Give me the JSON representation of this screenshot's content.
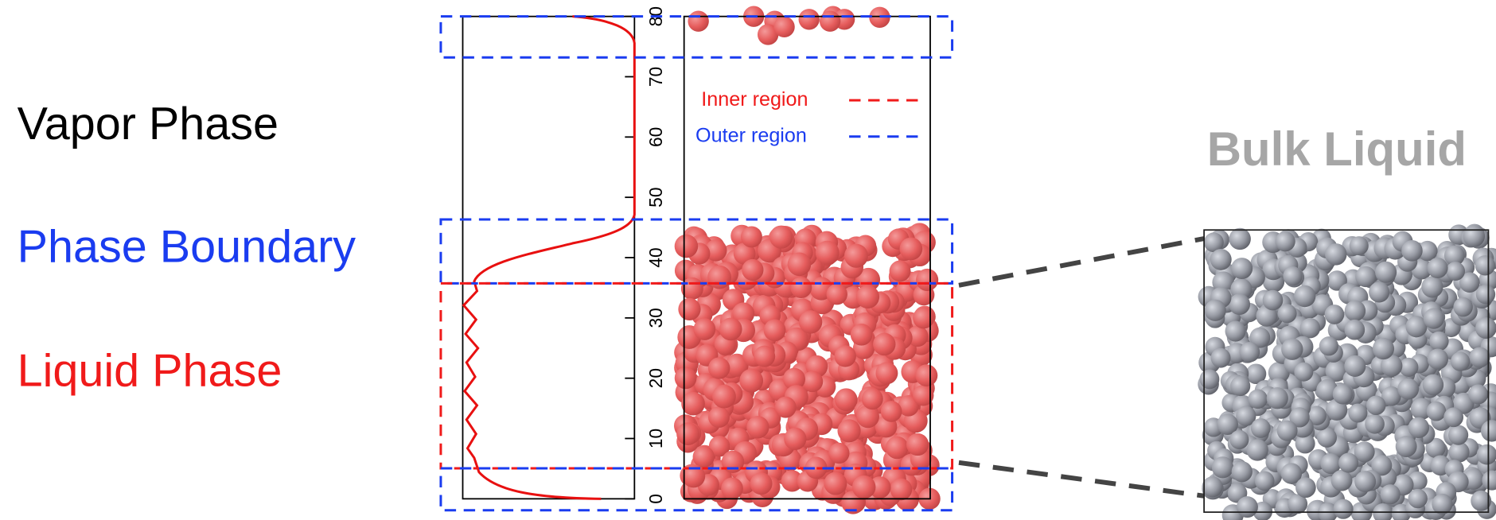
{
  "labels": {
    "vapor": "Vapor Phase",
    "boundary": "Phase Boundary",
    "liquid": "Liquid Phase"
  },
  "axis": {
    "ticks": [
      0,
      10,
      20,
      30,
      40,
      50,
      60,
      70,
      80
    ]
  },
  "legend": {
    "inner": "Inner region",
    "outer": "Outer region"
  },
  "inset": {
    "title": "Bulk Liquid"
  }
}
